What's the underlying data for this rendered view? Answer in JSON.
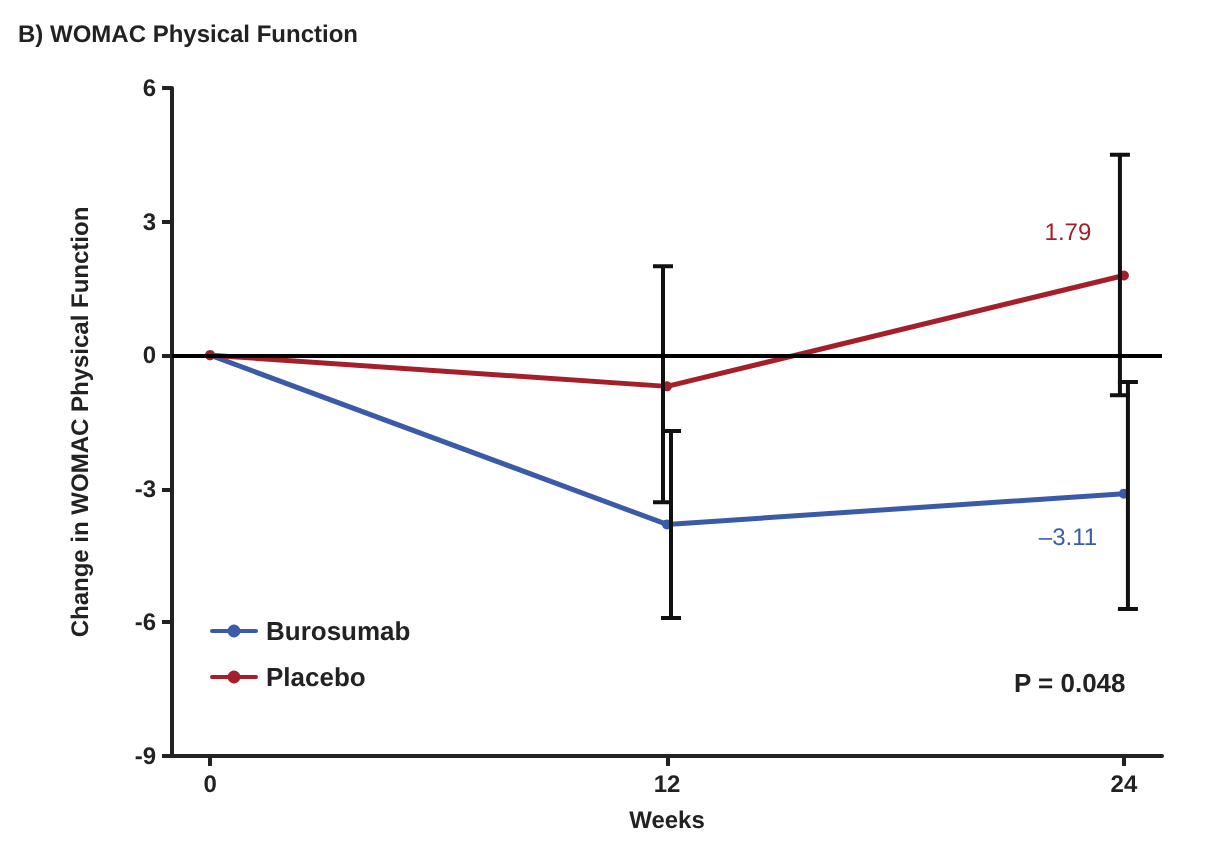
{
  "chart_data": {
    "type": "line",
    "title": "B) WOMAC Physical Function",
    "xlabel": "Weeks",
    "ylabel": "Change in WOMAC Physical Function",
    "x": [
      0,
      12,
      24
    ],
    "series": [
      {
        "name": "Burosumab",
        "color": "#3b5ba9",
        "values": [
          0,
          -3.8,
          -3.11
        ],
        "errors": [
          null,
          [
            -5.9,
            -1.7
          ],
          [
            -5.7,
            -0.6
          ]
        ],
        "value_labels": [
          null,
          null,
          "–3.11"
        ]
      },
      {
        "name": "Placebo",
        "color": "#a51f2b",
        "values": [
          0,
          -0.7,
          1.79
        ],
        "errors": [
          null,
          [
            -3.3,
            2.0
          ],
          [
            -0.9,
            4.5
          ]
        ],
        "value_labels": [
          null,
          null,
          "1.79"
        ]
      }
    ],
    "xlim": [
      -1,
      25
    ],
    "xticks": [
      0,
      12,
      24
    ],
    "ylim": [
      -9,
      6
    ],
    "yticks": [
      -9,
      -6,
      -3,
      0,
      3,
      6
    ],
    "ref_lines": [
      {
        "axis": "y",
        "value": 0,
        "color": "#000000"
      }
    ],
    "annotations": [
      "P = 0.048"
    ],
    "legend": "bottom left",
    "marker": "circle",
    "line_style": "solid",
    "grid": false
  }
}
